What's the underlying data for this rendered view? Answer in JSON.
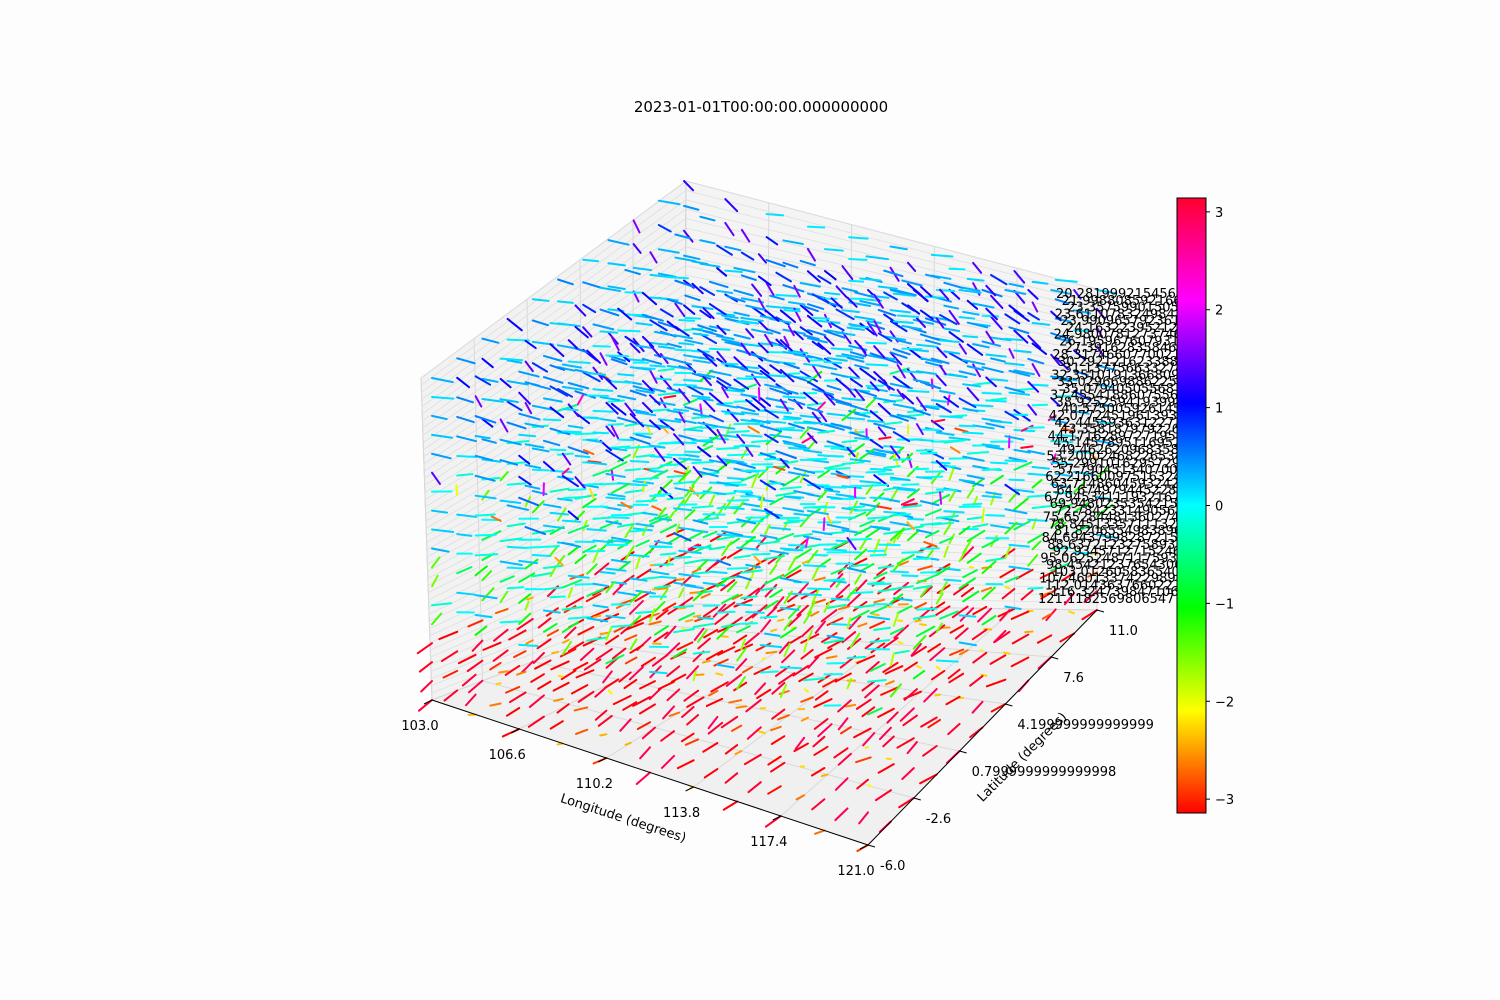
{
  "chart_data": {
    "type": "quiver3d",
    "title": "2023-01-01T00:00:00.000000000",
    "xlabel": "Longitude (degrees)",
    "ylabel": "Latitude (degrees)",
    "xlim": [
      103.0,
      121.0
    ],
    "ylim": [
      -6.0,
      11.0
    ],
    "x_ticks": [
      "103.0",
      "106.6",
      "110.2",
      "113.8",
      "117.4",
      "121.0"
    ],
    "y_ticks": [
      "-6.0",
      "-2.6",
      "0.7999999999999998",
      "4.199999999999999",
      "7.6",
      "11.0"
    ],
    "z_ticks": [
      "20.28199921545652",
      "21.99880859216656",
      "23.35759901505752",
      "23.61107832498474",
      "23.99096579236144",
      "24.16322395212302",
      "24.98007812737463",
      "26.19596760793132",
      "27.39162835846536",
      "28.31746607700218",
      "30.29212162338896",
      "31.13775663327441",
      "32.35101913668095",
      "33.02966988622523",
      "35.07940505568793",
      "37.45541886075561",
      "38.92525941939943",
      "40.57500592614556",
      "42.07724519613937",
      "42.44559363122727",
      "43.35818797922648",
      "44.17162897271954",
      "45.14578951169526",
      "49.46262096835862",
      "53.20002468226534",
      "55.29910162957291",
      "57.79045134070015",
      "62.21660097516324",
      "63.71486045932428",
      "64.67497944522817",
      "67.94534111932167",
      "69.94802353542153",
      "72.78423314905624",
      "75.65284481360274",
      "78.84513357111325",
      "81.82065549838969",
      "84.69437998287215",
      "88.63721232758932",
      "92.93457127152466",
      "95.06252487117593",
      "98.45421237654306",
      "103.0126058365402",
      "107.4601337422989",
      "112.0143637660221",
      "116.3247398471065",
      "121.1182569806547"
    ],
    "colorbar": {
      "range": [
        -3.14159,
        3.14159
      ],
      "ticks": [
        "3",
        "2",
        "1",
        "0",
        "−1",
        "−2",
        "−3"
      ],
      "colormap": "hsv"
    },
    "grid": {
      "nx": 11,
      "ny": 11,
      "nz": 46,
      "color_encoding": "direction angle (radians)",
      "region_directions": {
        "upper_atmosphere": 0.1,
        "mid_levels": -1.2,
        "lower_levels": 3.0
      }
    }
  },
  "colors": {
    "background": "#fdfdfd",
    "pane": "#f2f2f2",
    "gridline": "#cfcfcf",
    "axis": "#000000"
  }
}
